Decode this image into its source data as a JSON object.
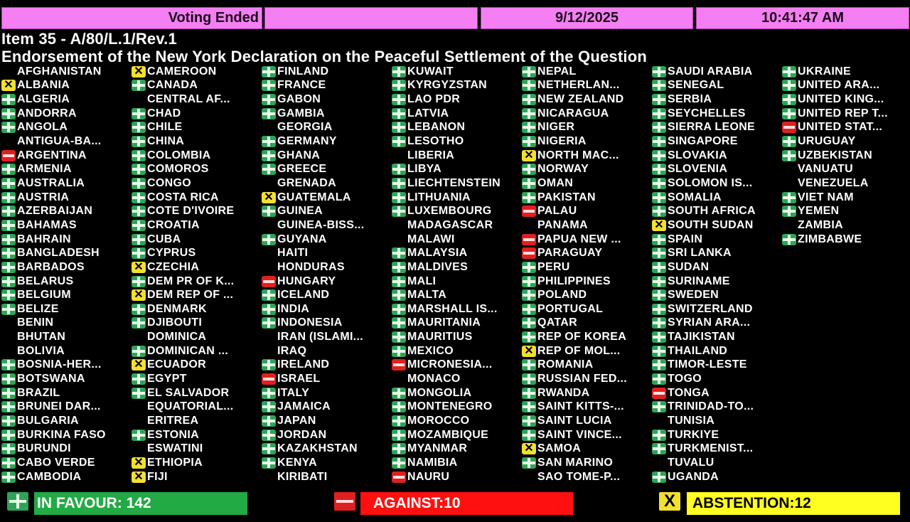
{
  "header": {
    "status": "Voting Ended",
    "blank": "",
    "date": "9/12/2025",
    "time": "10:41:47 AM"
  },
  "item": "Item 35 - A/80/L.1/Rev.1",
  "subject": "Endorsement of the New York Declaration on the Peaceful Settlement of the Question",
  "vote_colors": {
    "Y": "#2fa35a",
    "N": "#e02020",
    "A": "#f2e030"
  },
  "vote_icons": {
    "Y": "plus-icon",
    "N": "minus-icon",
    "A": "x-icon"
  },
  "countries": [
    [
      "AFGHANISTAN",
      ""
    ],
    [
      "ALBANIA",
      "A"
    ],
    [
      "ALGERIA",
      "Y"
    ],
    [
      "ANDORRA",
      "Y"
    ],
    [
      "ANGOLA",
      "Y"
    ],
    [
      "ANTIGUA-BA...",
      ""
    ],
    [
      "ARGENTINA",
      "N"
    ],
    [
      "ARMENIA",
      "Y"
    ],
    [
      "AUSTRALIA",
      "Y"
    ],
    [
      "AUSTRIA",
      "Y"
    ],
    [
      "AZERBAIJAN",
      "Y"
    ],
    [
      "BAHAMAS",
      "Y"
    ],
    [
      "BAHRAIN",
      "Y"
    ],
    [
      "BANGLADESH",
      "Y"
    ],
    [
      "BARBADOS",
      "Y"
    ],
    [
      "BELARUS",
      "Y"
    ],
    [
      "BELGIUM",
      "Y"
    ],
    [
      "BELIZE",
      "Y"
    ],
    [
      "BENIN",
      ""
    ],
    [
      "BHUTAN",
      ""
    ],
    [
      "BOLIVIA",
      ""
    ],
    [
      "BOSNIA-HER...",
      "Y"
    ],
    [
      "BOTSWANA",
      "Y"
    ],
    [
      "BRAZIL",
      "Y"
    ],
    [
      "BRUNEI DAR...",
      "Y"
    ],
    [
      "BULGARIA",
      "Y"
    ],
    [
      "BURKINA FASO",
      "Y"
    ],
    [
      "BURUNDI",
      "Y"
    ],
    [
      "CABO VERDE",
      "Y"
    ],
    [
      "CAMBODIA",
      "Y"
    ],
    [
      "CAMEROON",
      "A"
    ],
    [
      "CANADA",
      "Y"
    ],
    [
      "CENTRAL AF...",
      ""
    ],
    [
      "CHAD",
      "Y"
    ],
    [
      "CHILE",
      "Y"
    ],
    [
      "CHINA",
      "Y"
    ],
    [
      "COLOMBIA",
      "Y"
    ],
    [
      "COMOROS",
      "Y"
    ],
    [
      "CONGO",
      "Y"
    ],
    [
      "COSTA RICA",
      "Y"
    ],
    [
      "COTE D'IVOIRE",
      "Y"
    ],
    [
      "CROATIA",
      "Y"
    ],
    [
      "CUBA",
      "Y"
    ],
    [
      "CYPRUS",
      "Y"
    ],
    [
      "CZECHIA",
      "A"
    ],
    [
      "DEM PR OF K...",
      "Y"
    ],
    [
      "DEM REP OF ...",
      "A"
    ],
    [
      "DENMARK",
      "Y"
    ],
    [
      "DJIBOUTI",
      "Y"
    ],
    [
      "DOMINICA",
      ""
    ],
    [
      "DOMINICAN ...",
      "Y"
    ],
    [
      "ECUADOR",
      "A"
    ],
    [
      "EGYPT",
      "Y"
    ],
    [
      "EL SALVADOR",
      "Y"
    ],
    [
      "EQUATORIAL...",
      ""
    ],
    [
      "ERITREA",
      ""
    ],
    [
      "ESTONIA",
      "Y"
    ],
    [
      "ESWATINI",
      ""
    ],
    [
      "ETHIOPIA",
      "A"
    ],
    [
      "FIJI",
      "A"
    ],
    [
      "FINLAND",
      "Y"
    ],
    [
      "FRANCE",
      "Y"
    ],
    [
      "GABON",
      "Y"
    ],
    [
      "GAMBIA",
      "Y"
    ],
    [
      "GEORGIA",
      ""
    ],
    [
      "GERMANY",
      "Y"
    ],
    [
      "GHANA",
      "Y"
    ],
    [
      "GREECE",
      "Y"
    ],
    [
      "GRENADA",
      ""
    ],
    [
      "GUATEMALA",
      "A"
    ],
    [
      "GUINEA",
      "Y"
    ],
    [
      "GUINEA-BISS...",
      ""
    ],
    [
      "GUYANA",
      "Y"
    ],
    [
      "HAITI",
      ""
    ],
    [
      "HONDURAS",
      ""
    ],
    [
      "HUNGARY",
      "N"
    ],
    [
      "ICELAND",
      "Y"
    ],
    [
      "INDIA",
      "Y"
    ],
    [
      "INDONESIA",
      "Y"
    ],
    [
      "IRAN (ISLAMI...",
      ""
    ],
    [
      "IRAQ",
      ""
    ],
    [
      "IRELAND",
      "Y"
    ],
    [
      "ISRAEL",
      "N"
    ],
    [
      "ITALY",
      "Y"
    ],
    [
      "JAMAICA",
      "Y"
    ],
    [
      "JAPAN",
      "Y"
    ],
    [
      "JORDAN",
      "Y"
    ],
    [
      "KAZAKHSTAN",
      "Y"
    ],
    [
      "KENYA",
      "Y"
    ],
    [
      "KIRIBATI",
      ""
    ],
    [
      "KUWAIT",
      "Y"
    ],
    [
      "KYRGYZSTAN",
      "Y"
    ],
    [
      "LAO PDR",
      "Y"
    ],
    [
      "LATVIA",
      "Y"
    ],
    [
      "LEBANON",
      "Y"
    ],
    [
      "LESOTHO",
      "Y"
    ],
    [
      "LIBERIA",
      ""
    ],
    [
      "LIBYA",
      "Y"
    ],
    [
      "LIECHTENSTEIN",
      "Y"
    ],
    [
      "LITHUANIA",
      "Y"
    ],
    [
      "LUXEMBOURG",
      "Y"
    ],
    [
      "MADAGASCAR",
      ""
    ],
    [
      "MALAWI",
      ""
    ],
    [
      "MALAYSIA",
      "Y"
    ],
    [
      "MALDIVES",
      "Y"
    ],
    [
      "MALI",
      "Y"
    ],
    [
      "MALTA",
      "Y"
    ],
    [
      "MARSHALL IS...",
      "Y"
    ],
    [
      "MAURITANIA",
      "Y"
    ],
    [
      "MAURITIUS",
      "Y"
    ],
    [
      "MEXICO",
      "Y"
    ],
    [
      "MICRONESIA...",
      "N"
    ],
    [
      "MONACO",
      ""
    ],
    [
      "MONGOLIA",
      "Y"
    ],
    [
      "MONTENEGRO",
      "Y"
    ],
    [
      "MOROCCO",
      "Y"
    ],
    [
      "MOZAMBIQUE",
      "Y"
    ],
    [
      "MYANMAR",
      "Y"
    ],
    [
      "NAMIBIA",
      "Y"
    ],
    [
      "NAURU",
      "N"
    ],
    [
      "NEPAL",
      "Y"
    ],
    [
      "NETHERLAN...",
      "Y"
    ],
    [
      "NEW ZEALAND",
      "Y"
    ],
    [
      "NICARAGUA",
      "Y"
    ],
    [
      "NIGER",
      "Y"
    ],
    [
      "NIGERIA",
      "Y"
    ],
    [
      "NORTH MAC...",
      "A"
    ],
    [
      "NORWAY",
      "Y"
    ],
    [
      "OMAN",
      "Y"
    ],
    [
      "PAKISTAN",
      "Y"
    ],
    [
      "PALAU",
      "N"
    ],
    [
      "PANAMA",
      ""
    ],
    [
      "PAPUA NEW ...",
      "N"
    ],
    [
      "PARAGUAY",
      "N"
    ],
    [
      "PERU",
      "Y"
    ],
    [
      "PHILIPPINES",
      "Y"
    ],
    [
      "POLAND",
      "Y"
    ],
    [
      "PORTUGAL",
      "Y"
    ],
    [
      "QATAR",
      "Y"
    ],
    [
      "REP OF KOREA",
      "Y"
    ],
    [
      "REP OF MOL...",
      "A"
    ],
    [
      "ROMANIA",
      "Y"
    ],
    [
      "RUSSIAN FED...",
      "Y"
    ],
    [
      "RWANDA",
      "Y"
    ],
    [
      "SAINT KITTS-...",
      "Y"
    ],
    [
      "SAINT LUCIA",
      "Y"
    ],
    [
      "SAINT VINCE...",
      "Y"
    ],
    [
      "SAMOA",
      "A"
    ],
    [
      "SAN MARINO",
      "Y"
    ],
    [
      "SAO TOME-P...",
      ""
    ],
    [
      "SAUDI ARABIA",
      "Y"
    ],
    [
      "SENEGAL",
      "Y"
    ],
    [
      "SERBIA",
      "Y"
    ],
    [
      "SEYCHELLES",
      "Y"
    ],
    [
      "SIERRA LEONE",
      "Y"
    ],
    [
      "SINGAPORE",
      "Y"
    ],
    [
      "SLOVAKIA",
      "Y"
    ],
    [
      "SLOVENIA",
      "Y"
    ],
    [
      "SOLOMON IS...",
      "Y"
    ],
    [
      "SOMALIA",
      "Y"
    ],
    [
      "SOUTH AFRICA",
      "Y"
    ],
    [
      "SOUTH SUDAN",
      "A"
    ],
    [
      "SPAIN",
      "Y"
    ],
    [
      "SRI LANKA",
      "Y"
    ],
    [
      "SUDAN",
      "Y"
    ],
    [
      "SURINAME",
      "Y"
    ],
    [
      "SWEDEN",
      "Y"
    ],
    [
      "SWITZERLAND",
      "Y"
    ],
    [
      "SYRIAN ARA...",
      "Y"
    ],
    [
      "TAJIKISTAN",
      "Y"
    ],
    [
      "THAILAND",
      "Y"
    ],
    [
      "TIMOR-LESTE",
      "Y"
    ],
    [
      "TOGO",
      "Y"
    ],
    [
      "TONGA",
      "N"
    ],
    [
      "TRINIDAD-TO...",
      "Y"
    ],
    [
      "TUNISIA",
      ""
    ],
    [
      "TURKIYE",
      "Y"
    ],
    [
      "TURKMENIST...",
      "Y"
    ],
    [
      "TUVALU",
      ""
    ],
    [
      "UGANDA",
      "Y"
    ],
    [
      "UKRAINE",
      "Y"
    ],
    [
      "UNITED ARA...",
      "Y"
    ],
    [
      "UNITED KING...",
      "Y"
    ],
    [
      "UNITED REP T...",
      "Y"
    ],
    [
      "UNITED STAT...",
      "N"
    ],
    [
      "URUGUAY",
      "Y"
    ],
    [
      "UZBEKISTAN",
      "Y"
    ],
    [
      "VANUATU",
      ""
    ],
    [
      "VENEZUELA",
      ""
    ],
    [
      "VIET NAM",
      "Y"
    ],
    [
      "YEMEN",
      "Y"
    ],
    [
      "ZAMBIA",
      ""
    ],
    [
      "ZIMBABWE",
      "Y"
    ]
  ],
  "totals": {
    "in_favour": "IN FAVOUR: 142",
    "against": "AGAINST:10",
    "abstention": "ABSTENTION:12",
    "abstention_icon_glyph": "X"
  }
}
